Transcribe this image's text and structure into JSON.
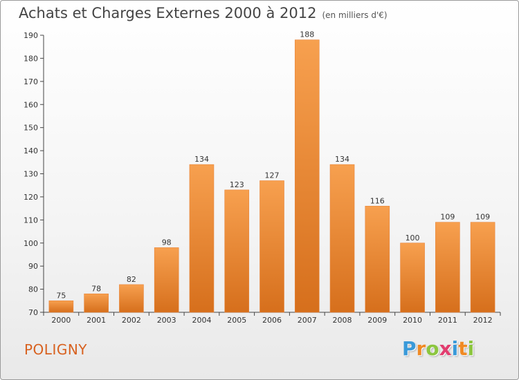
{
  "header": {
    "title": "Achats et Charges Externes 2000 à 2012",
    "subtitle": "(en milliers d'€)"
  },
  "footer": {
    "place": "POLIGNY",
    "logo_letters": [
      "P",
      "r",
      "o",
      "x",
      "i",
      "t",
      "i"
    ],
    "logo_colors": [
      "#3a9ad9",
      "#f08a24",
      "#8cc63f",
      "#e23d6f",
      "#3a9ad9",
      "#f08a24",
      "#8cc63f"
    ]
  },
  "colors": {
    "bar_light": "#f7a04f",
    "bar_dark": "#d66f1c",
    "bar_edge": "#e8843a"
  },
  "chart_data": {
    "type": "bar",
    "categories": [
      "2000",
      "2001",
      "2002",
      "2003",
      "2004",
      "2005",
      "2006",
      "2007",
      "2008",
      "2009",
      "2010",
      "2011",
      "2012"
    ],
    "values": [
      75,
      78,
      82,
      98,
      134,
      123,
      127,
      188,
      134,
      116,
      100,
      109,
      109
    ],
    "value_labels": [
      "75",
      "78",
      "82",
      "98",
      "134",
      "123",
      "127",
      "188",
      "134",
      "116",
      "100",
      "109",
      "109"
    ],
    "title": "Achats et Charges Externes 2000 à 2012",
    "xlabel": "",
    "ylabel": "",
    "ylim": [
      70,
      190
    ],
    "yticks": [
      70,
      80,
      90,
      100,
      110,
      120,
      130,
      140,
      150,
      160,
      170,
      180,
      190
    ],
    "ytick_labels": [
      "70",
      "80",
      "90",
      "100",
      "110",
      "120",
      "130",
      "140",
      "150",
      "160",
      "170",
      "180",
      "190"
    ],
    "grid": false,
    "legend": "none"
  }
}
